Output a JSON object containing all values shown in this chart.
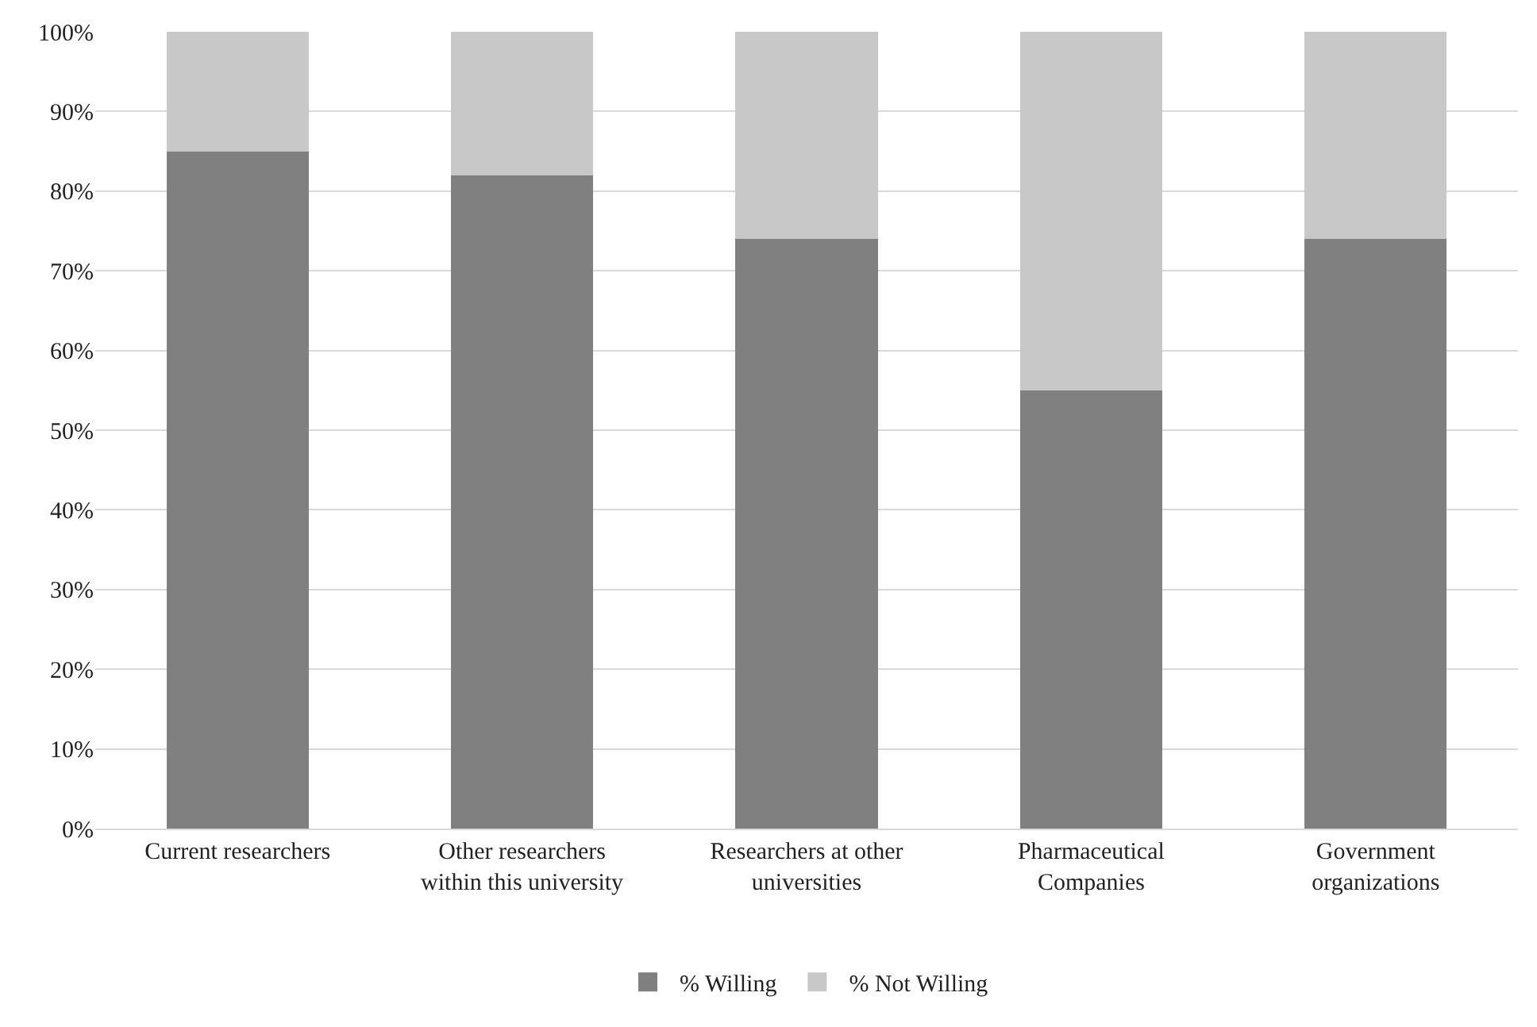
{
  "chart_data": {
    "type": "bar",
    "stacked": true,
    "categories": [
      "Current researchers",
      "Other researchers within this university",
      "Researchers at other universities",
      "Pharmaceutical Companies",
      "Government organizations"
    ],
    "series": [
      {
        "name": "% Willing",
        "color": "#808080",
        "values": [
          85,
          82,
          74,
          55,
          74
        ]
      },
      {
        "name": "% Not Willing",
        "color": "#c8c8c8",
        "values": [
          15,
          18,
          26,
          45,
          26
        ]
      }
    ],
    "ylim": [
      0,
      100
    ],
    "yticks": [
      {
        "value": 0,
        "label": "0%"
      },
      {
        "value": 10,
        "label": "10%"
      },
      {
        "value": 20,
        "label": "20%"
      },
      {
        "value": 30,
        "label": "30%"
      },
      {
        "value": 40,
        "label": "40%"
      },
      {
        "value": 50,
        "label": "50%"
      },
      {
        "value": 60,
        "label": "60%"
      },
      {
        "value": 70,
        "label": "70%"
      },
      {
        "value": 80,
        "label": "80%"
      },
      {
        "value": 90,
        "label": "90%"
      },
      {
        "value": 100,
        "label": "100%"
      }
    ],
    "grid": "y",
    "legend": "bottom"
  }
}
